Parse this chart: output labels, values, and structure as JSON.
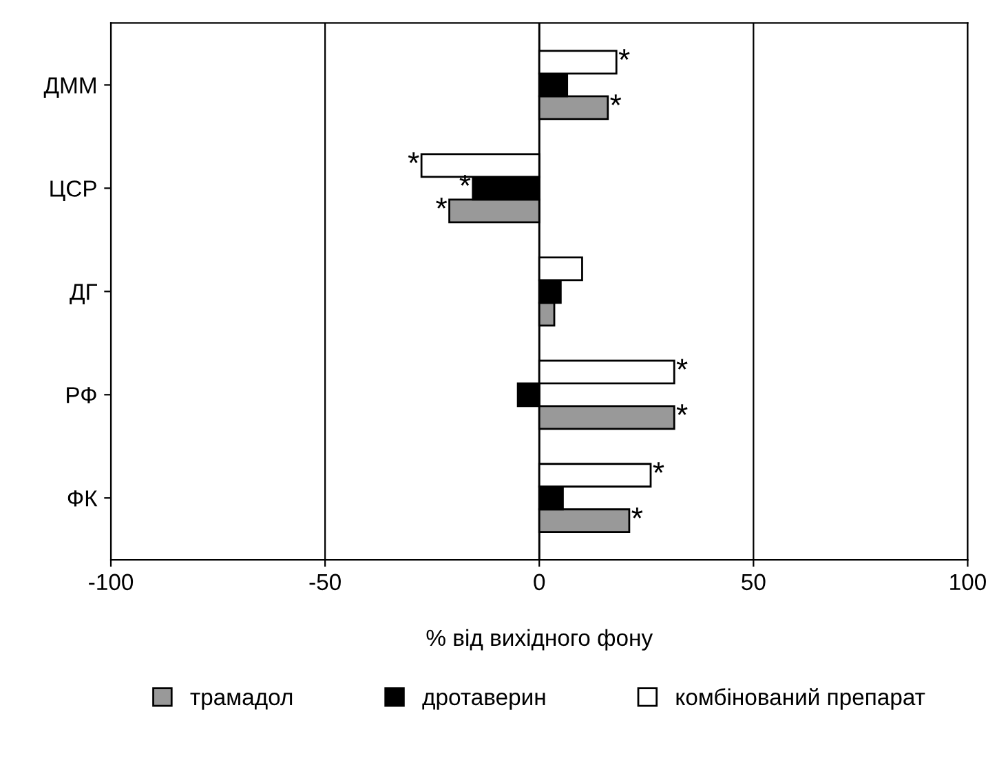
{
  "chart_data": {
    "type": "bar",
    "orientation": "horizontal",
    "xlabel": "% від вихідного фону",
    "categories": [
      "ДММ",
      "ЦСР",
      "ДГ",
      "РФ",
      "ФК"
    ],
    "series": [
      {
        "name": "трамадол",
        "color": "#999999",
        "values": [
          16,
          -21,
          3.5,
          31.5,
          21
        ],
        "value_labels": [
          "*",
          "*",
          null,
          "*",
          "*"
        ]
      },
      {
        "name": "дротаверин",
        "color": "#000000",
        "values": [
          6.5,
          -15.5,
          5,
          -5,
          5.5
        ],
        "value_labels": [
          null,
          "*",
          null,
          null,
          null
        ]
      },
      {
        "name": "комбінований препарат",
        "color": "#ffffff",
        "values": [
          18,
          -27.5,
          10,
          31.5,
          26
        ],
        "value_labels": [
          "*",
          "*",
          null,
          "*",
          "*"
        ]
      }
    ],
    "xlim": [
      -100,
      100
    ],
    "xticks": [
      -100,
      -50,
      0,
      50,
      100
    ],
    "grid": "x",
    "legend": "bottom"
  }
}
